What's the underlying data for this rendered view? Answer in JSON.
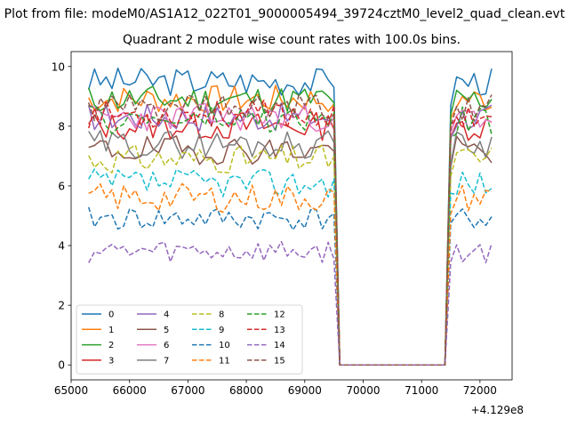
{
  "figure": {
    "suptitle": "Plot from file: modeM0/AS1A12_022T01_9000005494_39724cztM0_level2_quad_clean.evt",
    "title": "Quadrant 2 module wise count rates with 100.0s bins.",
    "x_offset_label": "+4.129e8"
  },
  "chart_data": {
    "type": "line",
    "title": "Quadrant 2 module wise count rates with 100.0s bins.",
    "xlabel": "",
    "ylabel": "",
    "x_offset": 412900000,
    "xlim": [
      65000,
      72550
    ],
    "ylim": [
      -0.5,
      10.5
    ],
    "xticks": [
      65000,
      66000,
      67000,
      68000,
      69000,
      70000,
      71000,
      72000
    ],
    "yticks": [
      0,
      2,
      4,
      6,
      8,
      10
    ],
    "grid": false,
    "legend_position": "lower-left",
    "legend_columns": 4,
    "x_segments": [
      {
        "start": 65300,
        "end": 69500,
        "step": 100
      },
      {
        "start": 69600,
        "end": 71400,
        "step": 100
      },
      {
        "start": 71500,
        "end": 72200,
        "step": 100
      }
    ],
    "series": [
      {
        "name": "0",
        "color": "#1f77b4",
        "style": "solid",
        "level": 9.5,
        "amp": 0.3,
        "seed": 3
      },
      {
        "name": "1",
        "color": "#ff7f0e",
        "style": "solid",
        "level": 8.9,
        "amp": 0.3,
        "seed": 7
      },
      {
        "name": "2",
        "color": "#2ca02c",
        "style": "solid",
        "level": 8.9,
        "amp": 0.3,
        "seed": 11
      },
      {
        "name": "3",
        "color": "#d62728",
        "style": "solid",
        "level": 8.0,
        "amp": 0.3,
        "seed": 13
      },
      {
        "name": "4",
        "color": "#9467bd",
        "style": "solid",
        "level": 8.3,
        "amp": 0.3,
        "seed": 17
      },
      {
        "name": "5",
        "color": "#8c564b",
        "style": "solid",
        "level": 7.2,
        "amp": 0.3,
        "seed": 19
      },
      {
        "name": "6",
        "color": "#e377c2",
        "style": "solid",
        "level": 8.3,
        "amp": 0.3,
        "seed": 23
      },
      {
        "name": "7",
        "color": "#7f7f7f",
        "style": "solid",
        "level": 7.4,
        "amp": 0.3,
        "seed": 29
      },
      {
        "name": "8",
        "color": "#bcbd22",
        "style": "dashed",
        "level": 6.9,
        "amp": 0.3,
        "seed": 31
      },
      {
        "name": "9",
        "color": "#17becf",
        "style": "dashed",
        "level": 6.1,
        "amp": 0.3,
        "seed": 37
      },
      {
        "name": "10",
        "color": "#1f77b4",
        "style": "dashed",
        "level": 4.9,
        "amp": 0.25,
        "seed": 41
      },
      {
        "name": "11",
        "color": "#ff7f0e",
        "style": "dashed",
        "level": 5.6,
        "amp": 0.3,
        "seed": 43
      },
      {
        "name": "12",
        "color": "#2ca02c",
        "style": "dashed",
        "level": 8.2,
        "amp": 0.3,
        "seed": 47
      },
      {
        "name": "13",
        "color": "#d62728",
        "style": "dashed",
        "level": 8.4,
        "amp": 0.3,
        "seed": 53
      },
      {
        "name": "14",
        "color": "#9467bd",
        "style": "dashed",
        "level": 3.8,
        "amp": 0.25,
        "seed": 59
      },
      {
        "name": "15",
        "color": "#8c564b",
        "style": "dashed",
        "level": 8.6,
        "amp": 0.3,
        "seed": 61
      }
    ]
  }
}
